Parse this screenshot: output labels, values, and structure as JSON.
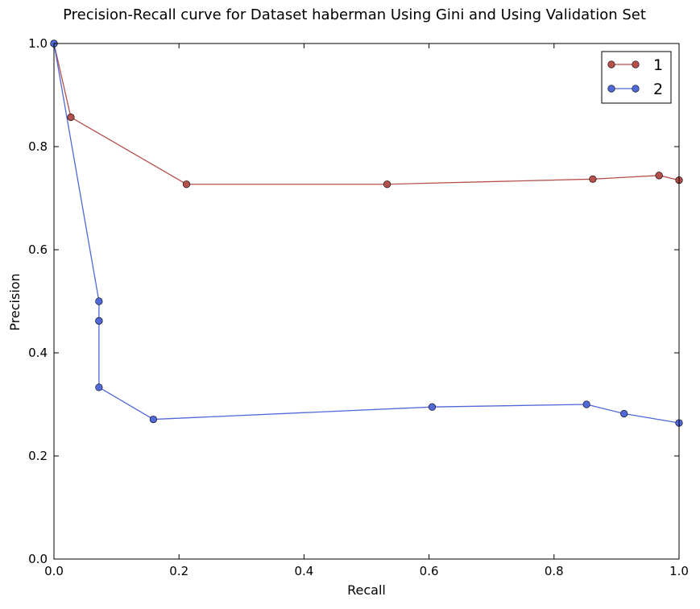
{
  "chart_data": {
    "type": "line",
    "title": "Precision-Recall curve for Dataset haberman Using Gini and Using Validation Set",
    "xlabel": "Recall",
    "ylabel": "Precision",
    "xlim": [
      0.0,
      1.0
    ],
    "ylim": [
      0.0,
      1.0
    ],
    "x_ticks": [
      0.0,
      0.2,
      0.4,
      0.6,
      0.8,
      1.0
    ],
    "y_ticks": [
      0.0,
      0.2,
      0.4,
      0.6,
      0.8,
      1.0
    ],
    "x_tick_labels": [
      "0.0",
      "0.2",
      "0.4",
      "0.6",
      "0.8",
      "1.0"
    ],
    "y_tick_labels": [
      "0.0",
      "0.2",
      "0.4",
      "0.6",
      "0.8",
      "1.0"
    ],
    "grid": false,
    "legend_position": "top-right",
    "series": [
      {
        "name": "1",
        "color": "#b5514d",
        "points": [
          [
            0.0,
            1.0
          ],
          [
            0.027,
            0.857
          ],
          [
            0.212,
            0.727
          ],
          [
            0.533,
            0.727
          ],
          [
            0.862,
            0.737
          ],
          [
            0.968,
            0.744
          ],
          [
            0.968,
            0.744
          ],
          [
            1.0,
            0.735
          ]
        ]
      },
      {
        "name": "2",
        "color": "#5068d8",
        "points": [
          [
            0.0,
            1.0
          ],
          [
            0.072,
            0.5
          ],
          [
            0.072,
            0.462
          ],
          [
            0.072,
            0.462
          ],
          [
            0.072,
            0.333
          ],
          [
            0.159,
            0.271
          ],
          [
            0.605,
            0.295
          ],
          [
            0.852,
            0.3
          ],
          [
            0.912,
            0.282
          ],
          [
            1.0,
            0.264
          ]
        ]
      }
    ]
  }
}
